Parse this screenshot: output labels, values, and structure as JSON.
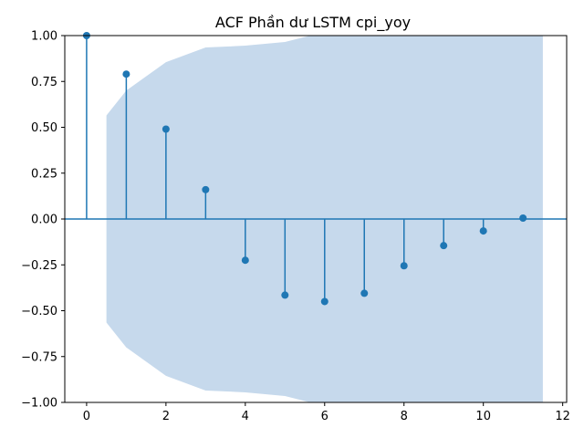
{
  "chart_data": {
    "type": "stem",
    "title": "ACF Phần dư LSTM cpi_yoy",
    "xlabel": "",
    "ylabel": "",
    "xlim": [
      -0.55,
      12.1
    ],
    "ylim": [
      -1.0,
      1.0
    ],
    "xticks": [
      "0",
      "2",
      "4",
      "6",
      "8",
      "10",
      "12"
    ],
    "yticks": [
      "−1.00",
      "−0.75",
      "−0.50",
      "−0.25",
      "0.00",
      "0.25",
      "0.50",
      "0.75",
      "1.00"
    ],
    "grid": false,
    "lags": [
      0,
      1,
      2,
      3,
      4,
      5,
      6,
      7,
      8,
      9,
      10,
      11
    ],
    "acf": [
      1.0,
      0.79,
      0.49,
      0.16,
      -0.225,
      -0.415,
      -0.45,
      -0.405,
      -0.255,
      -0.145,
      -0.065,
      0.005
    ],
    "confidence_band": {
      "x": [
        0.5,
        1,
        2,
        3,
        4,
        5,
        6,
        7,
        8,
        9,
        10,
        11,
        11.5
      ],
      "upper": [
        0.565,
        0.7,
        0.855,
        0.935,
        0.945,
        0.965,
        1.02,
        1.04,
        1.05,
        1.06,
        1.06,
        1.06,
        1.06
      ]
    },
    "colors": {
      "stem": "#1f77b4",
      "band": "#c6d9ec",
      "axis": "#000000"
    }
  }
}
